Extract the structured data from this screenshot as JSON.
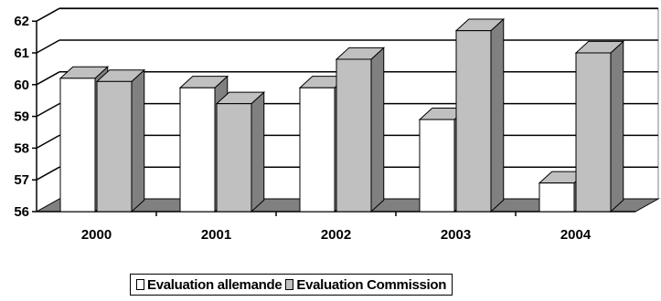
{
  "chart_data": {
    "type": "bar",
    "style": "3d-clustered-column",
    "categories": [
      "2000",
      "2001",
      "2002",
      "2003",
      "2004"
    ],
    "series": [
      {
        "name": "Evaluation allemande",
        "values": [
          60.2,
          59.9,
          59.9,
          58.9,
          56.9
        ],
        "color": "#ffffff"
      },
      {
        "name": "Evaluation Commission",
        "values": [
          60.1,
          59.4,
          60.8,
          61.7,
          61.0
        ],
        "color": "#c0c0c0"
      }
    ],
    "y_ticks": [
      "56",
      "57",
      "58",
      "59",
      "60",
      "61",
      "62"
    ],
    "ylim": [
      56,
      62
    ],
    "grid": true,
    "legend": "bottom",
    "colors": {
      "floor": "#808080",
      "bar_side": "#808080",
      "bar_top": "#c0c0c0",
      "grid": "#000000",
      "wall_border": "#808080"
    }
  }
}
